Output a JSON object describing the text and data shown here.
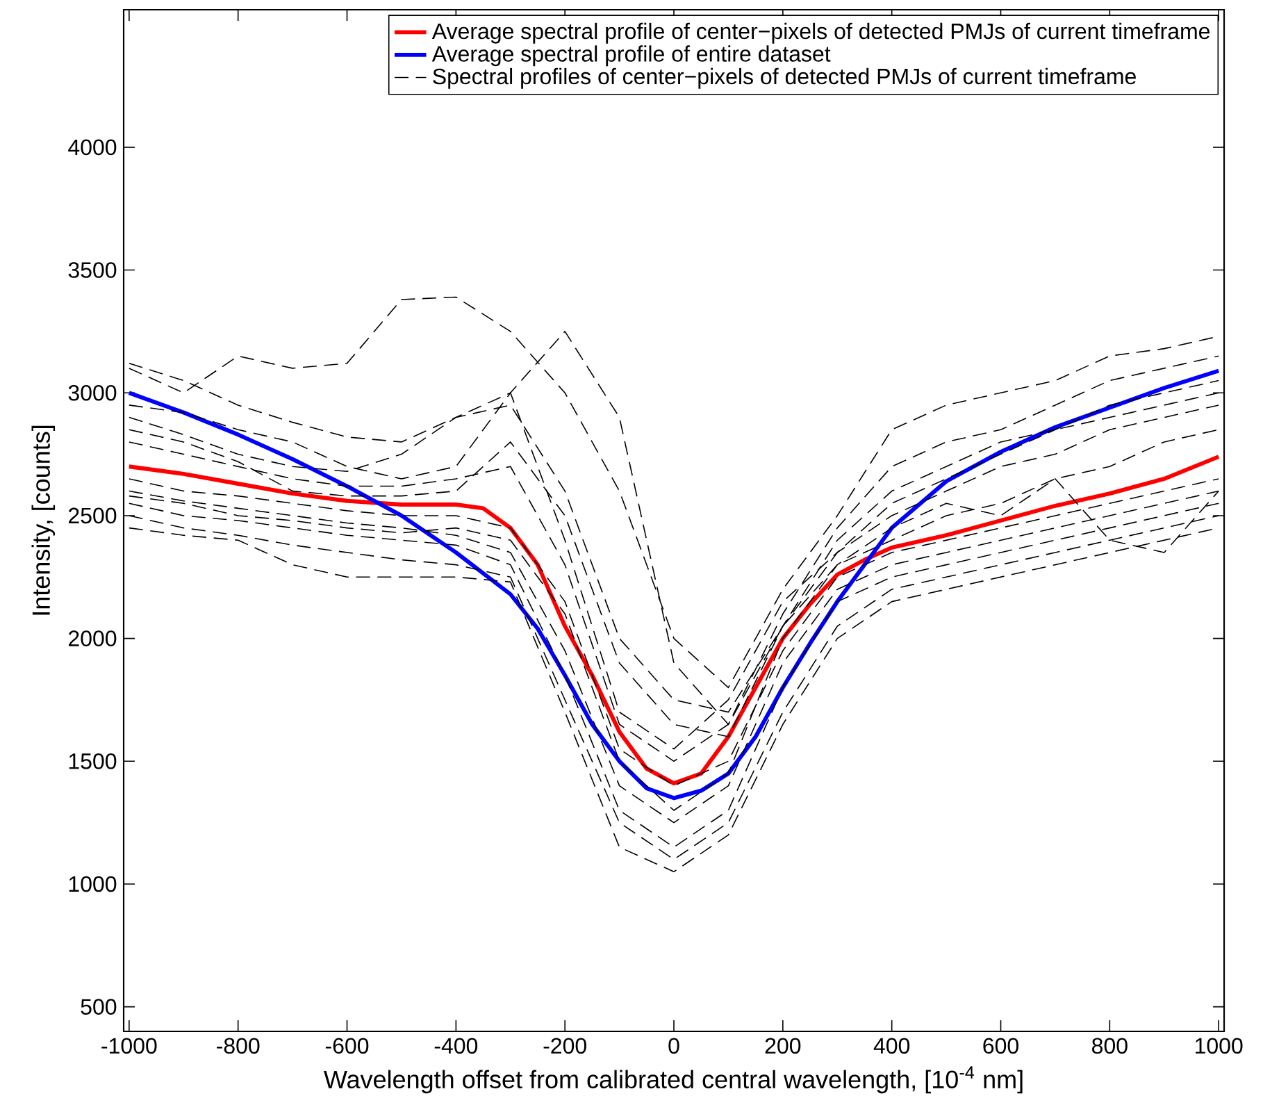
{
  "chart_data": {
    "type": "line",
    "xlabel": "Wavelength offset from calibrated central wavelength, [10$^{-4}$ nm]",
    "ylabel": "Intensity, [counts]",
    "xlim": [
      -1010,
      1010
    ],
    "ylim": [
      400,
      4560
    ],
    "xticks": [
      -1000,
      -800,
      -600,
      -400,
      -200,
      0,
      200,
      400,
      600,
      800,
      1000
    ],
    "yticks": [
      500,
      1000,
      1500,
      2000,
      2500,
      3000,
      3500,
      4000
    ],
    "legend": "top right",
    "grid": false,
    "series": [
      {
        "name": "Average spectral profile of center−pixels of detected PMJs of current timeframe",
        "color": "#ff0000",
        "line_style": "solid",
        "x": [
          -1000,
          -900,
          -800,
          -700,
          -600,
          -500,
          -400,
          -350,
          -300,
          -250,
          -200,
          -150,
          -100,
          -50,
          0,
          50,
          100,
          150,
          200,
          250,
          300,
          350,
          400,
          500,
          600,
          700,
          800,
          900,
          1000
        ],
        "values": [
          2700,
          2670,
          2630,
          2590,
          2560,
          2545,
          2545,
          2530,
          2450,
          2300,
          2050,
          1850,
          1620,
          1470,
          1410,
          1450,
          1600,
          1800,
          2000,
          2140,
          2260,
          2320,
          2370,
          2420,
          2480,
          2540,
          2590,
          2650,
          2740
        ]
      },
      {
        "name": "Average spectral profile of entire dataset",
        "color": "#0000ff",
        "line_style": "solid",
        "x": [
          -1000,
          -900,
          -800,
          -700,
          -600,
          -500,
          -400,
          -300,
          -250,
          -200,
          -150,
          -100,
          -50,
          0,
          50,
          100,
          150,
          200,
          250,
          300,
          350,
          400,
          500,
          600,
          700,
          800,
          900,
          1000
        ],
        "values": [
          3000,
          2920,
          2830,
          2730,
          2620,
          2500,
          2350,
          2180,
          2040,
          1850,
          1650,
          1500,
          1390,
          1350,
          1380,
          1450,
          1600,
          1800,
          1980,
          2150,
          2300,
          2450,
          2640,
          2760,
          2860,
          2940,
          3020,
          3090
        ]
      },
      {
        "name": "Spectral profiles of center−pixels of detected PMJs of current timeframe",
        "color": "#000000",
        "line_style": "dashed",
        "x": [
          -1000,
          -900,
          -800,
          -700,
          -600,
          -500,
          -400,
          -300,
          -200,
          -100,
          0,
          100,
          200,
          300,
          400,
          500,
          600,
          700,
          800,
          900,
          1000
        ],
        "values": [
          3100,
          3000,
          3150,
          3100,
          3120,
          3380,
          3390,
          3250,
          3000,
          2600,
          2000,
          1800,
          2200,
          2500,
          2850,
          2950,
          3000,
          3050,
          3150,
          3180,
          3230
        ]
      },
      {
        "color": "#000000",
        "line_style": "dashed",
        "x": [
          -1000,
          -900,
          -800,
          -700,
          -600,
          -500,
          -400,
          -300,
          -200,
          -100,
          0,
          100,
          200,
          300,
          400,
          500,
          600,
          700,
          800,
          900,
          1000
        ],
        "values": [
          2950,
          2920,
          2850,
          2800,
          2700,
          2650,
          2700,
          3000,
          3250,
          2900,
          1900,
          1650,
          2100,
          2450,
          2700,
          2800,
          2850,
          2950,
          3050,
          3100,
          3150
        ]
      },
      {
        "color": "#000000",
        "line_style": "dashed",
        "x": [
          -1000,
          -900,
          -800,
          -700,
          -600,
          -500,
          -400,
          -300,
          -200,
          -100,
          0,
          100,
          200,
          300,
          400,
          500,
          600,
          700,
          800,
          900,
          1000
        ],
        "values": [
          3120,
          3050,
          2950,
          2880,
          2820,
          2800,
          2900,
          2950,
          2600,
          2000,
          1750,
          1700,
          2050,
          2350,
          2550,
          2650,
          2750,
          2850,
          2950,
          3000,
          3050
        ]
      },
      {
        "color": "#000000",
        "line_style": "dashed",
        "x": [
          -1000,
          -900,
          -800,
          -700,
          -600,
          -500,
          -400,
          -300,
          -200,
          -100,
          0,
          100,
          200,
          300,
          400,
          500,
          600,
          700,
          800,
          900,
          1000
        ],
        "values": [
          2900,
          2830,
          2750,
          2700,
          2680,
          2750,
          2900,
          3000,
          2400,
          1700,
          1550,
          1750,
          2150,
          2350,
          2500,
          2600,
          2700,
          2750,
          2850,
          2900,
          2950
        ]
      },
      {
        "color": "#000000",
        "line_style": "dashed",
        "x": [
          -1000,
          -900,
          -800,
          -700,
          -600,
          -500,
          -400,
          -300,
          -200,
          -100,
          0,
          100,
          200,
          300,
          400,
          500,
          600,
          700,
          800,
          900,
          1000
        ],
        "values": [
          2800,
          2750,
          2700,
          2650,
          2620,
          2620,
          2650,
          2700,
          2300,
          1650,
          1500,
          1650,
          2050,
          2300,
          2400,
          2500,
          2550,
          2650,
          2700,
          2800,
          2850
        ]
      },
      {
        "color": "#000000",
        "line_style": "dashed",
        "x": [
          -1000,
          -900,
          -800,
          -700,
          -600,
          -500,
          -400,
          -300,
          -200,
          -100,
          0,
          100,
          200,
          300,
          400,
          500,
          600,
          700,
          800,
          900,
          1000
        ],
        "values": [
          2650,
          2600,
          2580,
          2550,
          2520,
          2500,
          2500,
          2450,
          2150,
          1550,
          1400,
          1500,
          1950,
          2250,
          2350,
          2400,
          2450,
          2500,
          2550,
          2600,
          2650
        ]
      },
      {
        "color": "#000000",
        "line_style": "dashed",
        "x": [
          -1000,
          -900,
          -800,
          -700,
          -600,
          -500,
          -400,
          -300,
          -200,
          -100,
          0,
          100,
          200,
          300,
          400,
          500,
          600,
          700,
          800,
          900,
          1000
        ],
        "values": [
          2600,
          2560,
          2530,
          2500,
          2470,
          2450,
          2420,
          2350,
          1950,
          1400,
          1250,
          1400,
          1900,
          2200,
          2300,
          2350,
          2400,
          2450,
          2500,
          2550,
          2600
        ]
      },
      {
        "color": "#000000",
        "line_style": "dashed",
        "x": [
          -1000,
          -900,
          -800,
          -700,
          -600,
          -500,
          -400,
          -300,
          -200,
          -100,
          0,
          100,
          200,
          300,
          400,
          500,
          600,
          700,
          800,
          900,
          1000
        ],
        "values": [
          2550,
          2500,
          2480,
          2450,
          2420,
          2400,
          2380,
          2300,
          1850,
          1300,
          1150,
          1300,
          1800,
          2150,
          2250,
          2300,
          2350,
          2400,
          2450,
          2500,
          2550
        ]
      },
      {
        "color": "#000000",
        "line_style": "dashed",
        "x": [
          -1000,
          -900,
          -800,
          -700,
          -600,
          -500,
          -400,
          -300,
          -200,
          -100,
          0,
          100,
          200,
          300,
          400,
          500,
          600,
          700,
          800,
          900,
          1000
        ],
        "values": [
          2500,
          2450,
          2420,
          2380,
          2350,
          2320,
          2300,
          2250,
          1750,
          1250,
          1100,
          1250,
          1700,
          2050,
          2200,
          2250,
          2300,
          2350,
          2400,
          2450,
          2500
        ]
      },
      {
        "color": "#000000",
        "line_style": "dashed",
        "x": [
          -1000,
          -900,
          -800,
          -700,
          -600,
          -500,
          -400,
          -300,
          -200,
          -100,
          0,
          100,
          200,
          300,
          400,
          500,
          600,
          700,
          800,
          900,
          1000
        ],
        "values": [
          2450,
          2420,
          2400,
          2300,
          2250,
          2250,
          2250,
          2230,
          1700,
          1150,
          1050,
          1200,
          1650,
          2000,
          2150,
          2200,
          2250,
          2300,
          2350,
          2400,
          2450
        ]
      },
      {
        "color": "#000000",
        "line_style": "dashed",
        "x": [
          -1000,
          -900,
          -800,
          -700,
          -600,
          -500,
          -400,
          -300,
          -200,
          -100,
          0,
          100,
          200,
          300,
          400,
          500,
          600,
          700,
          800,
          900,
          1000
        ],
        "values": [
          2580,
          2550,
          2500,
          2480,
          2450,
          2430,
          2450,
          2400,
          2100,
          1500,
          1300,
          1450,
          2000,
          2300,
          2450,
          2550,
          2500,
          2650,
          2400,
          2350,
          2600
        ]
      },
      {
        "color": "#000000",
        "line_style": "dashed",
        "x": [
          -1000,
          -900,
          -800,
          -700,
          -600,
          -500,
          -400,
          -300,
          -200,
          -100,
          0,
          100,
          200,
          300,
          400,
          500,
          600,
          700,
          800,
          900,
          1000
        ],
        "values": [
          2850,
          2800,
          2720,
          2600,
          2580,
          2580,
          2600,
          2800,
          2500,
          1900,
          1650,
          1600,
          2050,
          2400,
          2600,
          2700,
          2800,
          2850,
          2900,
          2950,
          3000
        ]
      }
    ]
  }
}
